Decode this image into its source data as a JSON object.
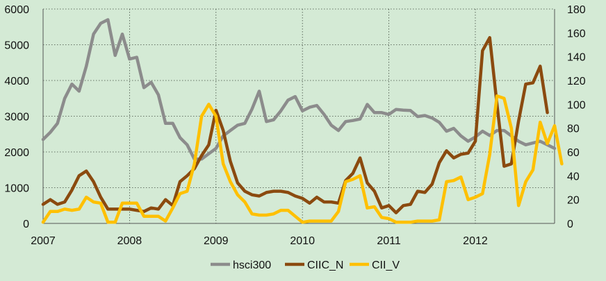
{
  "chart_data": {
    "type": "line",
    "title": "",
    "xlabel": "",
    "ylabel": "",
    "y2label": "",
    "background": "#d4ead5",
    "grid": "dotted",
    "legend_position": "bottom",
    "x_ticks": [
      "2007",
      "2008",
      "2009",
      "2010",
      "2011",
      "2012"
    ],
    "x_tick_index": [
      0,
      12,
      24,
      36,
      48,
      60
    ],
    "x_start": "2007-01",
    "ylim_left": [
      0,
      6000
    ],
    "yticks_left": [
      "0",
      "1000",
      "2000",
      "3000",
      "4000",
      "5000",
      "6000"
    ],
    "ylim_right": [
      0,
      180
    ],
    "yticks_right": [
      "0",
      "20",
      "40",
      "60",
      "80",
      "100",
      "120",
      "140",
      "160",
      "180"
    ],
    "series": [
      {
        "name": "hsci300",
        "axis": "left",
        "color": "#8c8c8c",
        "values": [
          2350,
          2550,
          2800,
          3500,
          3900,
          3700,
          4400,
          5300,
          5600,
          5700,
          4700,
          5300,
          4600,
          4650,
          3800,
          3950,
          3600,
          2800,
          2800,
          2400,
          2200,
          1800,
          1800,
          1950,
          2100,
          2450,
          2600,
          2750,
          2800,
          3200,
          3700,
          2850,
          2900,
          3150,
          3450,
          3550,
          3150,
          3250,
          3300,
          3050,
          2750,
          2600,
          2850,
          2880,
          2920,
          3330,
          3100,
          3100,
          3050,
          3190,
          3170,
          3160,
          2990,
          3020,
          2950,
          2830,
          2580,
          2660,
          2450,
          2300,
          2420,
          2580,
          2460,
          2600,
          2600,
          2450,
          2300,
          2200,
          2250,
          2300,
          2200,
          2100
        ]
      },
      {
        "name": "CIIC_N",
        "axis": "right",
        "color": "#8b4a0f",
        "values": [
          16,
          20,
          16,
          18,
          28,
          40,
          44,
          35,
          22,
          12,
          12,
          12,
          12,
          11,
          10,
          13,
          12,
          20,
          15,
          35,
          40,
          46,
          57,
          66,
          95,
          78,
          52,
          34,
          27,
          24,
          23,
          26,
          27,
          27,
          26,
          23,
          21,
          17,
          22,
          18,
          18,
          17,
          36,
          42,
          55,
          34,
          27,
          13,
          15,
          9,
          15,
          16,
          27,
          26,
          33,
          51,
          61,
          55,
          58,
          59,
          69,
          145,
          156,
          100,
          48,
          50,
          86,
          117,
          118,
          132,
          93
        ]
      },
      {
        "name": "CII_V",
        "axis": "right",
        "color": "#ffc000",
        "values": [
          1,
          10,
          10,
          12,
          11,
          12,
          22,
          18,
          17,
          1,
          1,
          17,
          17,
          17,
          6,
          6,
          6,
          2,
          13,
          25,
          27,
          50,
          90,
          100,
          90,
          50,
          35,
          24,
          18,
          8,
          7,
          7,
          8,
          11,
          11,
          6,
          1,
          2,
          2,
          2,
          2,
          10,
          35,
          37,
          40,
          13,
          14,
          5,
          4,
          1,
          1,
          1,
          2,
          2,
          2,
          3,
          35,
          36,
          39,
          20,
          22,
          25,
          58,
          107,
          105,
          80,
          15,
          35,
          45,
          85,
          67,
          82,
          50
        ]
      }
    ]
  }
}
